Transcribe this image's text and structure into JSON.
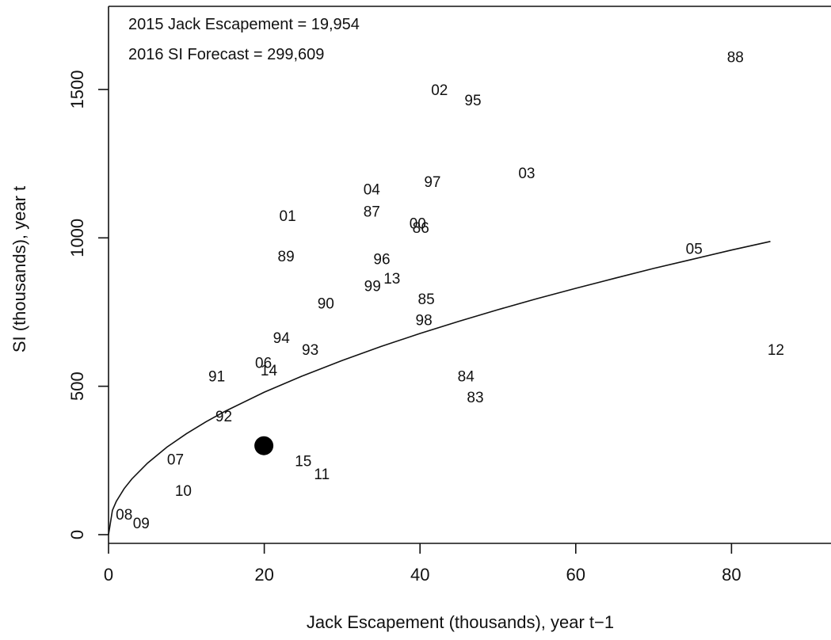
{
  "chart_data": {
    "type": "scatter",
    "title": "",
    "xlabel": "Jack Escapement (thousands), year t−1",
    "ylabel": "SI (thousands), year t",
    "xlim": [
      0,
      93
    ],
    "ylim": [
      -15,
      1775
    ],
    "xticks": [
      "0",
      "20",
      "40",
      "60",
      "80"
    ],
    "yticks": [
      "0",
      "500",
      "1000",
      "1500"
    ],
    "annotations": [
      "2015 Jack Escapement = 19,954",
      "2016 SI Forecast = 299,609"
    ],
    "points": [
      {
        "label": "88",
        "x": 80.5,
        "y": 1610
      },
      {
        "label": "02",
        "x": 42.5,
        "y": 1500
      },
      {
        "label": "95",
        "x": 46.8,
        "y": 1465
      },
      {
        "label": "03",
        "x": 53.7,
        "y": 1220
      },
      {
        "label": "97",
        "x": 41.6,
        "y": 1190
      },
      {
        "label": "04",
        "x": 33.8,
        "y": 1165
      },
      {
        "label": "87",
        "x": 33.8,
        "y": 1090
      },
      {
        "label": "01",
        "x": 23.0,
        "y": 1075
      },
      {
        "label": "00",
        "x": 39.7,
        "y": 1050
      },
      {
        "label": "86",
        "x": 40.1,
        "y": 1035
      },
      {
        "label": "05",
        "x": 75.2,
        "y": 965
      },
      {
        "label": "89",
        "x": 22.8,
        "y": 940
      },
      {
        "label": "96",
        "x": 35.1,
        "y": 930
      },
      {
        "label": "13",
        "x": 36.4,
        "y": 865
      },
      {
        "label": "99",
        "x": 33.9,
        "y": 840
      },
      {
        "label": "85",
        "x": 40.8,
        "y": 795
      },
      {
        "label": "90",
        "x": 27.9,
        "y": 780
      },
      {
        "label": "98",
        "x": 40.5,
        "y": 725
      },
      {
        "label": "94",
        "x": 22.2,
        "y": 665
      },
      {
        "label": "12",
        "x": 85.7,
        "y": 625
      },
      {
        "label": "93",
        "x": 25.9,
        "y": 625
      },
      {
        "label": "06",
        "x": 19.9,
        "y": 580
      },
      {
        "label": "14",
        "x": 20.6,
        "y": 555
      },
      {
        "label": "84",
        "x": 45.9,
        "y": 535
      },
      {
        "label": "91",
        "x": 13.9,
        "y": 535
      },
      {
        "label": "83",
        "x": 47.1,
        "y": 465
      },
      {
        "label": "92",
        "x": 14.8,
        "y": 400
      },
      {
        "label": "07",
        "x": 8.6,
        "y": 255
      },
      {
        "label": "15",
        "x": 25.0,
        "y": 250
      },
      {
        "label": "11",
        "x": 27.4,
        "y": 205
      },
      {
        "label": "10",
        "x": 9.6,
        "y": 150
      },
      {
        "label": "08",
        "x": 2.0,
        "y": 70
      },
      {
        "label": "09",
        "x": 4.2,
        "y": 40
      }
    ],
    "forecast_point": {
      "x": 19.954,
      "y": 299.609
    },
    "fit_curve": {
      "x": [
        0,
        0.5,
        1,
        2,
        3,
        5,
        7.5,
        10,
        12.5,
        15,
        20,
        25,
        30,
        35,
        40,
        45,
        50,
        55,
        60,
        65,
        70,
        75,
        80,
        85
      ],
      "y": [
        0,
        82,
        112,
        155,
        188,
        241,
        295,
        340,
        380,
        416,
        480,
        536,
        587,
        634,
        678,
        719,
        758,
        795,
        830,
        864,
        897,
        928,
        959,
        988
      ]
    }
  }
}
